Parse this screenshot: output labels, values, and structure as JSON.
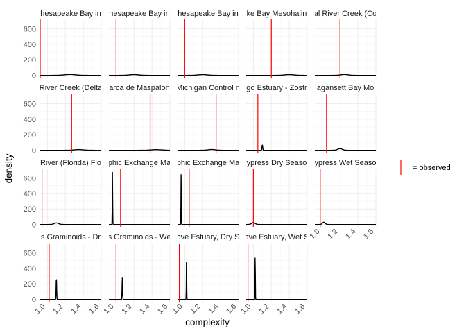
{
  "chart_data": {
    "type": "density",
    "layout": {
      "columns": 5,
      "rows": 4
    },
    "xlabel": "complexity",
    "ylabel": "density",
    "xlim": [
      0.92,
      1.6
    ],
    "ylim": [
      -30,
      720
    ],
    "x_ticks": [
      1.0,
      1.2,
      1.4,
      1.6
    ],
    "y_ticks": [
      0,
      200,
      400,
      600
    ],
    "grid": true,
    "legend": {
      "position": "right",
      "label": "= observed",
      "color": "#ff0000"
    },
    "line_color": "#000000",
    "observed_color": "#ff0000",
    "panels": [
      {
        "label": "hesapeake Bay in",
        "observed": 0.92,
        "peak_x": 1.25,
        "peak_y": 12,
        "width": 0.06
      },
      {
        "label": "hesapeake Bay in",
        "observed": 1.0,
        "peak_x": 1.2,
        "peak_y": 10,
        "width": 0.05
      },
      {
        "label": "hesapeake Bay in",
        "observed": 1.0,
        "peak_x": 1.2,
        "peak_y": 10,
        "width": 0.05
      },
      {
        "label": "ke Bay Mesohalin",
        "observed": 1.2,
        "peak_x": 1.4,
        "peak_y": 10,
        "width": 0.05
      },
      {
        "label": "al River Creek (Co",
        "observed": 1.2,
        "peak_x": 1.25,
        "peak_y": 12,
        "width": 0.04
      },
      {
        "label": "River Creek (Delta",
        "observed": 1.27,
        "peak_x": 1.35,
        "peak_y": 9,
        "width": 0.05
      },
      {
        "label": "arca de Maspalon",
        "observed": 1.38,
        "peak_x": 1.45,
        "peak_y": 8,
        "width": 0.06
      },
      {
        "label": "Michigan Control n",
        "observed": 1.35,
        "peak_x": 1.3,
        "peak_y": 10,
        "width": 0.04
      },
      {
        "label": "go Estuary - Zostr",
        "observed": 1.05,
        "peak_x": 1.1,
        "peak_y": 70,
        "width": 0.004
      },
      {
        "label": "agansett Bay Mo",
        "observed": 1.05,
        "peak_x": 1.2,
        "peak_y": 22,
        "width": 0.025
      },
      {
        "label": "River (Florida) Flo",
        "observed": 0.94,
        "peak_x": 1.1,
        "peak_y": 20,
        "width": 0.025
      },
      {
        "label": "phic Exchange Ma",
        "observed": 1.05,
        "peak_x": 0.96,
        "peak_y": 680,
        "width": 0.002
      },
      {
        "label": "phic Exchange Ma",
        "observed": 1.05,
        "peak_x": 0.96,
        "peak_y": 650,
        "width": 0.002
      },
      {
        "label": "ypress Dry Seaso",
        "observed": 1.0,
        "peak_x": 1.0,
        "peak_y": 25,
        "width": 0.02
      },
      {
        "label": "ypress Wet Seaso",
        "observed": 0.98,
        "peak_x": 1.02,
        "peak_y": 30,
        "width": 0.015
      },
      {
        "label": "s Graminoids - Dr",
        "observed": 1.02,
        "peak_x": 1.1,
        "peak_y": 280,
        "width": 0.003
      },
      {
        "label": "s Graminoids - We",
        "observed": 1.0,
        "peak_x": 1.07,
        "peak_y": 285,
        "width": 0.003
      },
      {
        "label": "ove Estuary, Dry S",
        "observed": 0.94,
        "peak_x": 1.02,
        "peak_y": 525,
        "width": 0.002
      },
      {
        "label": "ove Estuary, Wet S",
        "observed": 0.94,
        "peak_x": 1.02,
        "peak_y": 580,
        "width": 0.002
      }
    ]
  }
}
